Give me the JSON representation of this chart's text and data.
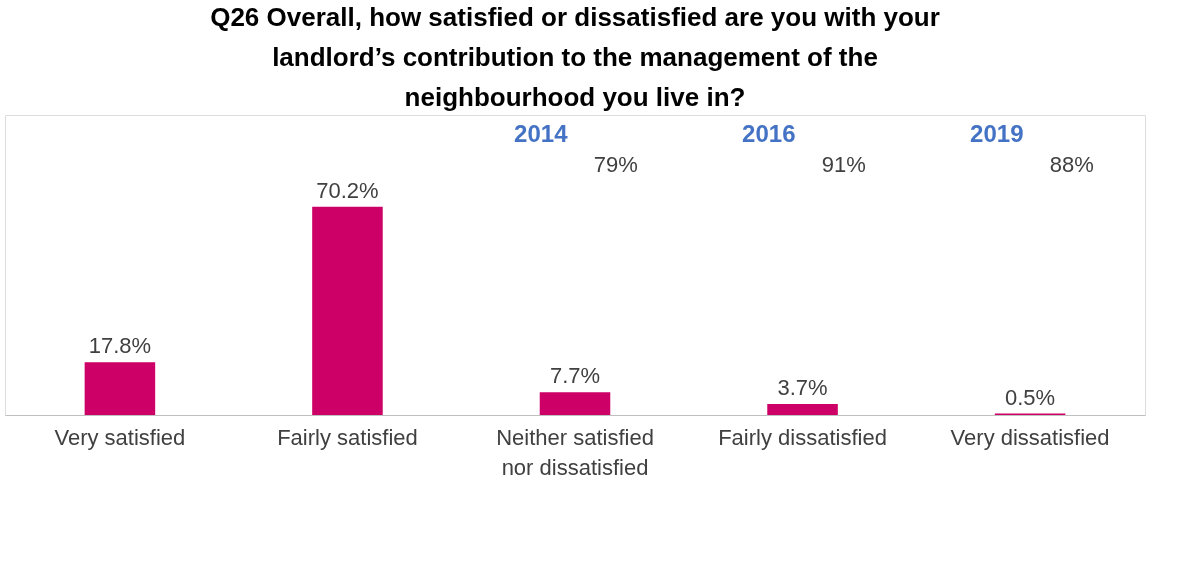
{
  "chart_data": {
    "type": "bar",
    "title": "Q26 Overall, how satisfied or dissatisfied are you with your\nlandlord’s contribution to the management of the\nneighbourhood you live in?",
    "categories": [
      "Very satisfied",
      "Fairly satisfied",
      "Neither satisfied\nnor dissatisfied",
      "Fairly dissatisfied",
      "Very dissatisfied"
    ],
    "values": [
      17.8,
      70.2,
      7.7,
      3.7,
      0.5
    ],
    "value_labels": [
      "17.8%",
      "70.2%",
      "7.7%",
      "3.7%",
      "0.5%"
    ],
    "color": "#cc0066",
    "annotations": [
      "2014",
      "79%",
      "2016",
      "91%",
      "2019",
      "88%"
    ]
  }
}
